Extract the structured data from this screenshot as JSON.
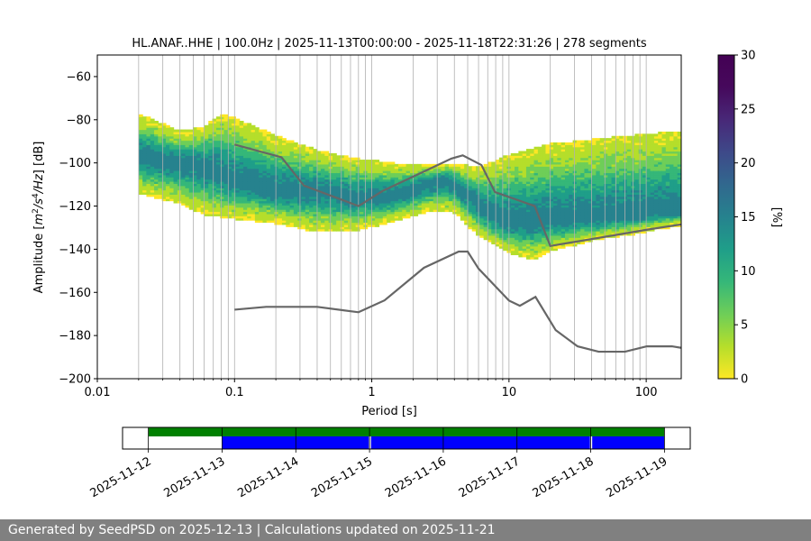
{
  "chart_data": [
    {
      "type": "heatmap",
      "title": "HL.ANAF..HHE | 100.0Hz | 2025-11-13T00:00:00 - 2025-11-18T22:31:26 | 278 segments",
      "xlabel": "Period [s]",
      "ylabel_parts": [
        "Amplitude [",
        "m",
        "2",
        "/",
        "s",
        "4",
        "/",
        "Hz",
        "] [dB]"
      ],
      "x_scale": "log",
      "xlim": [
        0.01,
        180
      ],
      "ylim": [
        -200,
        -50
      ],
      "x_ticks": [
        0.01,
        0.1,
        1,
        10,
        100
      ],
      "x_tick_labels": [
        "0.01",
        "0.1",
        "1",
        "10",
        "100"
      ],
      "y_ticks": [
        -200,
        -180,
        -160,
        -140,
        -120,
        -100,
        -80,
        -60
      ],
      "y_tick_labels": [
        "−200",
        "−180",
        "−160",
        "−140",
        "−120",
        "−100",
        "−80",
        "−60"
      ],
      "grid_x_periods": [
        0.02,
        0.03,
        0.04,
        0.05,
        0.06,
        0.07,
        0.08,
        0.09,
        0.2,
        0.3,
        0.4,
        0.5,
        0.6,
        0.7,
        0.8,
        0.9,
        2,
        3,
        4,
        5,
        6,
        7,
        8,
        9,
        20,
        30,
        40,
        50,
        60,
        70,
        80,
        90
      ],
      "grid": "x only",
      "density": {
        "period_range": [
          0.02,
          180
        ],
        "mean_curve": [
          [
            0.02,
            -97
          ],
          [
            0.04,
            -100
          ],
          [
            0.06,
            -101
          ],
          [
            0.1,
            -108
          ],
          [
            0.2,
            -113
          ],
          [
            0.4,
            -113
          ],
          [
            0.8,
            -116
          ],
          [
            1.5,
            -115
          ],
          [
            2.5,
            -110
          ],
          [
            3.5,
            -107
          ],
          [
            5,
            -115
          ],
          [
            7,
            -123
          ],
          [
            10,
            -127
          ],
          [
            15,
            -127
          ],
          [
            20,
            -126
          ],
          [
            40,
            -126
          ],
          [
            80,
            -124
          ],
          [
            180,
            -122
          ]
        ],
        "upper_curve": [
          [
            0.02,
            -78
          ],
          [
            0.04,
            -86
          ],
          [
            0.06,
            -84
          ],
          [
            0.08,
            -78
          ],
          [
            0.1,
            -80
          ],
          [
            0.2,
            -88
          ],
          [
            0.4,
            -95
          ],
          [
            0.8,
            -99
          ],
          [
            1.5,
            -101
          ],
          [
            2.5,
            -101
          ],
          [
            4,
            -101
          ],
          [
            6,
            -103
          ],
          [
            10,
            -97
          ],
          [
            20,
            -92
          ],
          [
            40,
            -90
          ],
          [
            80,
            -88
          ],
          [
            180,
            -86
          ]
        ],
        "lower_curve": [
          [
            0.02,
            -113
          ],
          [
            0.04,
            -118
          ],
          [
            0.06,
            -123
          ],
          [
            0.1,
            -125
          ],
          [
            0.2,
            -127
          ],
          [
            0.4,
            -131
          ],
          [
            0.8,
            -130
          ],
          [
            1.5,
            -126
          ],
          [
            2.5,
            -122
          ],
          [
            4,
            -122
          ],
          [
            6,
            -133
          ],
          [
            10,
            -141
          ],
          [
            15,
            -144
          ],
          [
            20,
            -140
          ],
          [
            40,
            -135
          ],
          [
            80,
            -132
          ],
          [
            180,
            -128
          ]
        ]
      },
      "nhnm": [
        [
          0.1,
          -91.5
        ],
        [
          0.22,
          -97.4
        ],
        [
          0.32,
          -110.5
        ],
        [
          0.8,
          -120
        ],
        [
          1.2,
          -113
        ],
        [
          2.4,
          -104
        ],
        [
          3.8,
          -98
        ],
        [
          4.6,
          -96.5
        ],
        [
          6.3,
          -101
        ],
        [
          7.9,
          -113.5
        ],
        [
          15.4,
          -120
        ],
        [
          20,
          -138.5
        ],
        [
          100,
          -131
        ],
        [
          180,
          -128.5
        ]
      ],
      "nlnm": [
        [
          0.1,
          -168
        ],
        [
          0.17,
          -166.7
        ],
        [
          0.4,
          -166.7
        ],
        [
          0.8,
          -169.2
        ],
        [
          1.24,
          -163.7
        ],
        [
          2.4,
          -148.6
        ],
        [
          4.3,
          -141.1
        ],
        [
          5,
          -141.1
        ],
        [
          6,
          -149
        ],
        [
          10,
          -163.8
        ],
        [
          12,
          -166.2
        ],
        [
          15.6,
          -162.1
        ],
        [
          21.9,
          -177.5
        ],
        [
          31.6,
          -185
        ],
        [
          45,
          -187.5
        ],
        [
          70,
          -187.5
        ],
        [
          101,
          -185
        ],
        [
          154,
          -185
        ],
        [
          180,
          -185.7
        ]
      ],
      "model_line_color": "#666666",
      "colorbar": {
        "label": "[%]",
        "range": [
          0,
          30
        ],
        "ticks": [
          0,
          5,
          10,
          15,
          20,
          25,
          30
        ],
        "tick_labels": [
          "0",
          "5",
          "10",
          "15",
          "20",
          "25",
          "30"
        ],
        "colormap": "viridis_r"
      }
    },
    {
      "type": "timeline",
      "x_tick_labels": [
        "2025-11-12",
        "2025-11-13",
        "2025-11-14",
        "2025-11-15",
        "2025-11-16",
        "2025-11-17",
        "2025-11-18",
        "2025-11-19"
      ],
      "x_range_days": [
        -0.35,
        7.35
      ],
      "availability_bar": {
        "color": "#008000",
        "start_day": 0,
        "end_day": 7
      },
      "used_segments": {
        "color": "#0000ff",
        "segments": [
          [
            1,
            2.99
          ],
          [
            3.02,
            5.99
          ],
          [
            6.02,
            7
          ]
        ]
      }
    }
  ],
  "footer_text": "Generated by SeedPSD on 2025-12-13 | Calculations updated on 2025-11-21"
}
